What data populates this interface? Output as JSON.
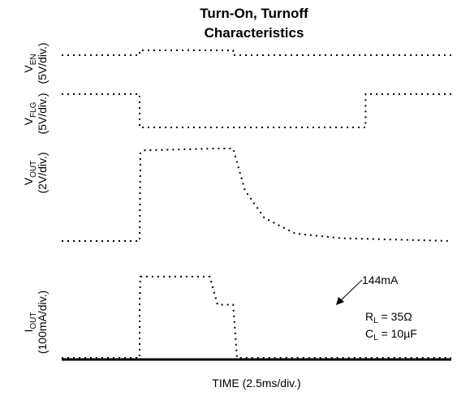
{
  "chart_data": {
    "type": "line",
    "title": [
      "Turn-On, Turnoff",
      "Characteristics"
    ],
    "xlabel": "TIME (2.5ms/div.)",
    "grid": false,
    "y_labels": [
      {
        "symbol": "V",
        "sub": "EN",
        "scale": "(5V/div.)"
      },
      {
        "symbol": "V",
        "sub": "FLG",
        "scale": "(5V/div.)"
      },
      {
        "symbol": "V",
        "sub": "OUT",
        "scale": "(2V/div.)"
      },
      {
        "symbol": "I",
        "sub": "OUT",
        "scale": "(100mA/div.)"
      }
    ],
    "annotations": {
      "peak_current": "144mA",
      "rl_symbol": "R",
      "rl_sub": "L",
      "rl_value": " = 35Ω",
      "cl_symbol": "C",
      "cl_sub": "L",
      "cl_value": " = 10µF"
    },
    "x_unit": "divisions",
    "x_range": [
      0,
      10
    ],
    "series": [
      {
        "points": [
          [
            0,
            0
          ],
          [
            2.0,
            0
          ],
          [
            2.0,
            1
          ],
          [
            4.4,
            1
          ],
          [
            4.4,
            0
          ],
          [
            10,
            0
          ]
        ]
      },
      {
        "points": [
          [
            0,
            1
          ],
          [
            2.0,
            1
          ],
          [
            2.0,
            0
          ],
          [
            7.8,
            0
          ],
          [
            7.8,
            1
          ],
          [
            10,
            1
          ]
        ]
      },
      {
        "points": [
          [
            0,
            0
          ],
          [
            2.0,
            0
          ],
          [
            2.02,
            0.95
          ],
          [
            2.1,
            0.98
          ],
          [
            4.0,
            1
          ],
          [
            4.4,
            1
          ],
          [
            4.7,
            0.55
          ],
          [
            5.2,
            0.25
          ],
          [
            6.0,
            0.08
          ],
          [
            7.2,
            0.03
          ],
          [
            10,
            0
          ]
        ]
      },
      {
        "points": [
          [
            0,
            0
          ],
          [
            2.0,
            0
          ],
          [
            2.0,
            1.5
          ],
          [
            2.02,
            2.2
          ],
          [
            3.8,
            2.2
          ],
          [
            4.0,
            1.44
          ],
          [
            4.4,
            1.44
          ],
          [
            4.5,
            0
          ],
          [
            10,
            0
          ]
        ]
      }
    ]
  }
}
